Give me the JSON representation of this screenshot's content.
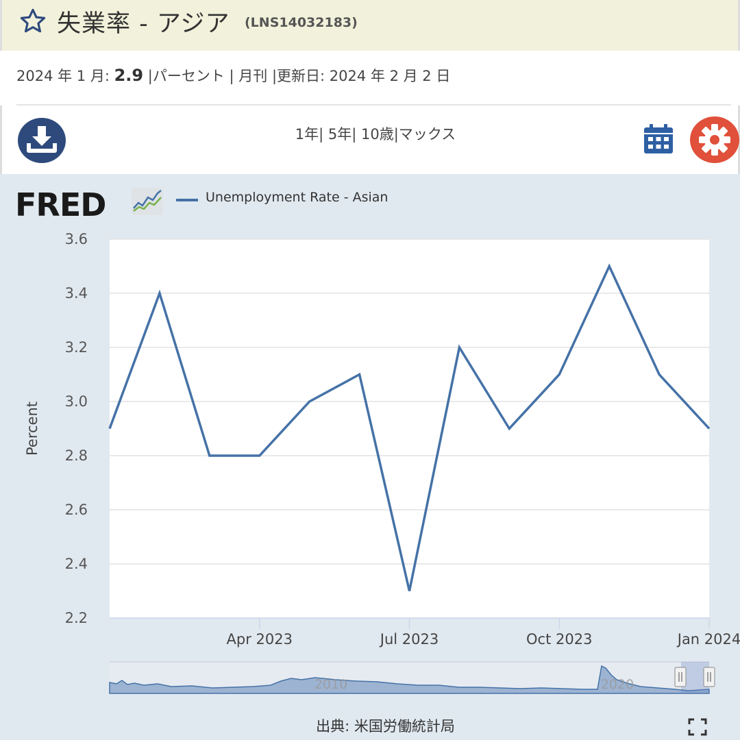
{
  "header": {
    "title": "失業率 - アジア",
    "series_id": "(LNS14032183)"
  },
  "meta": {
    "period": "2024 年 1 月: ",
    "value": "2.9",
    "unit": " |パーセント | 月刊 |更新日: 2024 年 2 月 2 日"
  },
  "toolbar": {
    "ranges": "1年| 5年| 10歳|マックス"
  },
  "icons": {
    "favorite": "star-icon",
    "download": "download-icon",
    "calendar": "calendar-icon",
    "settings": "gear-icon",
    "fullscreen": "fullscreen-icon"
  },
  "colors": {
    "series": "#4572a7",
    "header_bg": "#f2f2dc",
    "chart_bg": "#e1e9f0",
    "download_btn": "#2e4a7d",
    "settings_btn": "#e0503a"
  },
  "brand": {
    "logo": "FRED"
  },
  "chart_data": {
    "type": "line",
    "title": "",
    "xlabel": "",
    "ylabel": "Percent",
    "ylim": [
      2.2,
      3.6
    ],
    "yticks": [
      "2.2",
      "2.4",
      "2.6",
      "2.8",
      "3.0",
      "3.2",
      "3.4",
      "3.6"
    ],
    "xticks": [
      "Apr 2023",
      "Jul 2023",
      "Oct 2023",
      "Jan 2024"
    ],
    "grid": true,
    "legend": "top-left",
    "series": [
      {
        "name": "Unemployment Rate - Asian",
        "x": [
          "2023-01",
          "2023-02",
          "2023-03",
          "2023-04",
          "2023-05",
          "2023-06",
          "2023-07",
          "2023-08",
          "2023-09",
          "2023-10",
          "2023-11",
          "2023-12",
          "2024-01"
        ],
        "values": [
          2.9,
          3.4,
          2.8,
          2.8,
          3.0,
          3.1,
          2.3,
          3.2,
          2.9,
          3.1,
          3.5,
          3.1,
          2.9
        ]
      }
    ],
    "navigator": {
      "labels": [
        "2010",
        "2020"
      ]
    }
  },
  "footer": {
    "source": "出典: 米国労働統計局"
  }
}
